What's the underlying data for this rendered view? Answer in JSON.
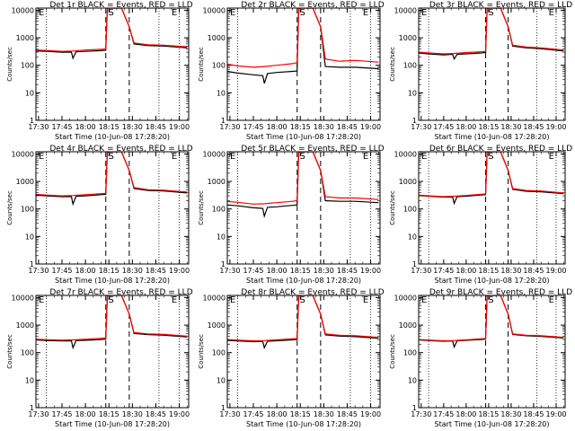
{
  "chart_data": [
    {
      "type": "line",
      "title": "Det 1r BLACK = Events, RED = LLD",
      "xlabel": "Start Time (10-Jun-08 17:28:20)",
      "ylabel": "Counts/sec",
      "x_ticklabels": [
        "17:30",
        "17:45",
        "18:00",
        "18:15",
        "18:30",
        "18:45",
        "19:00"
      ],
      "y_ticklabels": [
        "1",
        "10",
        "100",
        "1000",
        "10000"
      ],
      "ylim": [
        1,
        12000
      ],
      "yscale": "log",
      "annotations": [
        "E",
        "S",
        "E"
      ],
      "series": [
        {
          "name": "BLACK",
          "color": "#000000",
          "x": [
            "17:28",
            "17:35",
            "17:45",
            "17:51",
            "17:52",
            "17:54",
            "18:00",
            "18:10",
            "18:13",
            "18:14",
            "18:20",
            "18:23",
            "18:28",
            "18:31",
            "18:40",
            "18:50",
            "19:05"
          ],
          "y": [
            330,
            320,
            300,
            300,
            180,
            310,
            320,
            340,
            350,
            12000,
            12000,
            12000,
            2500,
            600,
            520,
            500,
            430
          ]
        },
        {
          "name": "RED",
          "color": "#ff0000",
          "x": [
            "17:28",
            "17:35",
            "17:45",
            "17:52",
            "18:00",
            "18:10",
            "18:13",
            "18:14",
            "18:20",
            "18:23",
            "18:28",
            "18:31",
            "18:40",
            "18:50",
            "19:05"
          ],
          "y": [
            360,
            345,
            320,
            330,
            360,
            380,
            390,
            12000,
            12000,
            12000,
            2500,
            650,
            560,
            540,
            470
          ]
        }
      ]
    },
    {
      "type": "line",
      "title": "Det 2r BLACK = Events, RED = LLD",
      "xlabel": "Start Time (10-Jun-08 17:28:20)",
      "ylabel": "Counts/sec",
      "x_ticklabels": [
        "17:30",
        "17:45",
        "18:00",
        "18:15",
        "18:30",
        "18:45",
        "19:00"
      ],
      "y_ticklabels": [
        "1",
        "10",
        "100",
        "1000",
        "10000"
      ],
      "ylim": [
        1,
        12000
      ],
      "yscale": "log",
      "annotations": [
        "E",
        "S",
        "E"
      ],
      "series": [
        {
          "name": "BLACK",
          "color": "#000000",
          "x": [
            "17:28",
            "17:35",
            "17:45",
            "17:51",
            "17:52",
            "17:54",
            "18:00",
            "18:10",
            "18:13",
            "18:14",
            "18:20",
            "18:23",
            "18:28",
            "18:31",
            "18:40",
            "18:50",
            "19:05"
          ],
          "y": [
            60,
            52,
            45,
            42,
            22,
            50,
            55,
            60,
            62,
            12000,
            12000,
            12000,
            2500,
            90,
            85,
            85,
            75
          ]
        },
        {
          "name": "RED",
          "color": "#ff0000",
          "x": [
            "17:28",
            "17:35",
            "17:45",
            "17:52",
            "18:00",
            "18:10",
            "18:13",
            "18:14",
            "18:20",
            "18:23",
            "18:28",
            "18:31",
            "18:40",
            "18:50",
            "19:05"
          ],
          "y": [
            110,
            95,
            85,
            90,
            100,
            115,
            125,
            12000,
            12000,
            12000,
            2500,
            170,
            140,
            150,
            130
          ]
        }
      ]
    },
    {
      "type": "line",
      "title": "Det 3r BLACK = Events, RED = LLD",
      "xlabel": "Start Time (10-Jun-08 17:28:20)",
      "ylabel": "Counts/sec",
      "x_ticklabels": [
        "17:30",
        "17:45",
        "18:00",
        "18:15",
        "18:30",
        "18:45",
        "19:00"
      ],
      "y_ticklabels": [
        "1",
        "10",
        "100",
        "1000",
        "10000"
      ],
      "ylim": [
        1,
        12000
      ],
      "yscale": "log",
      "annotations": [
        "E",
        "S",
        "E"
      ],
      "series": [
        {
          "name": "BLACK",
          "color": "#000000",
          "x": [
            "17:28",
            "17:35",
            "17:45",
            "17:51",
            "17:52",
            "17:54",
            "18:00",
            "18:10",
            "18:13",
            "18:14",
            "18:20",
            "18:23",
            "18:28",
            "18:31",
            "18:40",
            "18:50",
            "19:05"
          ],
          "y": [
            280,
            260,
            240,
            250,
            170,
            250,
            260,
            280,
            290,
            12000,
            12000,
            12000,
            2500,
            500,
            430,
            400,
            330
          ]
        },
        {
          "name": "RED",
          "color": "#ff0000",
          "x": [
            "17:28",
            "17:35",
            "17:45",
            "17:52",
            "18:00",
            "18:10",
            "18:13",
            "18:14",
            "18:20",
            "18:23",
            "18:28",
            "18:31",
            "18:40",
            "18:50",
            "19:05"
          ],
          "y": [
            300,
            280,
            260,
            270,
            290,
            310,
            320,
            12000,
            12000,
            12000,
            2500,
            540,
            460,
            430,
            360
          ]
        }
      ]
    },
    {
      "type": "line",
      "title": "Det 4r BLACK = Events, RED = LLD",
      "xlabel": "Start Time (10-Jun-08 17:28:20)",
      "ylabel": "Counts/sec",
      "x_ticklabels": [
        "17:30",
        "17:45",
        "18:00",
        "18:15",
        "18:30",
        "18:45",
        "19:00"
      ],
      "y_ticklabels": [
        "1",
        "10",
        "100",
        "1000",
        "10000"
      ],
      "ylim": [
        1,
        12000
      ],
      "yscale": "log",
      "annotations": [
        "E",
        "S",
        "E"
      ],
      "series": [
        {
          "name": "BLACK",
          "color": "#000000",
          "x": [
            "17:28",
            "17:35",
            "17:45",
            "17:51",
            "17:52",
            "17:54",
            "18:00",
            "18:10",
            "18:13",
            "18:14",
            "18:20",
            "18:23",
            "18:28",
            "18:31",
            "18:40",
            "18:50",
            "19:05"
          ],
          "y": [
            320,
            300,
            280,
            280,
            150,
            290,
            300,
            330,
            340,
            12000,
            12000,
            12000,
            2500,
            550,
            470,
            450,
            380
          ]
        },
        {
          "name": "RED",
          "color": "#ff0000",
          "x": [
            "17:28",
            "17:35",
            "17:45",
            "17:52",
            "18:00",
            "18:10",
            "18:13",
            "18:14",
            "18:20",
            "18:23",
            "18:28",
            "18:31",
            "18:40",
            "18:50",
            "19:05"
          ],
          "y": [
            340,
            320,
            300,
            310,
            330,
            360,
            370,
            12000,
            12000,
            12000,
            2500,
            600,
            500,
            480,
            410
          ]
        }
      ]
    },
    {
      "type": "line",
      "title": "Det 5r BLACK = Events, RED = LLD",
      "xlabel": "Start Time (10-Jun-08 17:28:20)",
      "ylabel": "Counts/sec",
      "x_ticklabels": [
        "17:30",
        "17:45",
        "18:00",
        "18:15",
        "18:30",
        "18:45",
        "19:00"
      ],
      "y_ticklabels": [
        "1",
        "10",
        "100",
        "1000",
        "10000"
      ],
      "ylim": [
        1,
        12000
      ],
      "yscale": "log",
      "annotations": [
        "E",
        "S",
        "E"
      ],
      "series": [
        {
          "name": "BLACK",
          "color": "#000000",
          "x": [
            "17:28",
            "17:35",
            "17:45",
            "17:51",
            "17:52",
            "17:54",
            "18:00",
            "18:10",
            "18:13",
            "18:14",
            "18:20",
            "18:23",
            "18:28",
            "18:31",
            "18:40",
            "18:50",
            "19:05"
          ],
          "y": [
            140,
            130,
            110,
            105,
            55,
            115,
            120,
            135,
            140,
            12000,
            12000,
            12000,
            2500,
            200,
            190,
            190,
            170
          ]
        },
        {
          "name": "RED",
          "color": "#ff0000",
          "x": [
            "17:28",
            "17:35",
            "17:45",
            "17:52",
            "18:00",
            "18:10",
            "18:13",
            "18:14",
            "18:20",
            "18:23",
            "18:28",
            "18:31",
            "18:40",
            "18:50",
            "19:05"
          ],
          "y": [
            190,
            175,
            150,
            155,
            170,
            190,
            200,
            12000,
            12000,
            12000,
            2500,
            280,
            250,
            250,
            220
          ]
        }
      ]
    },
    {
      "type": "line",
      "title": "Det 6r BLACK = Events, RED = LLD",
      "xlabel": "Start Time (10-Jun-08 17:28:20)",
      "ylabel": "Counts/sec",
      "x_ticklabels": [
        "17:30",
        "17:45",
        "18:00",
        "18:15",
        "18:30",
        "18:45",
        "19:00"
      ],
      "y_ticklabels": [
        "1",
        "10",
        "100",
        "1000",
        "10000"
      ],
      "ylim": [
        1,
        12000
      ],
      "yscale": "log",
      "annotations": [
        "E",
        "S",
        "E"
      ],
      "series": [
        {
          "name": "BLACK",
          "color": "#000000",
          "x": [
            "17:28",
            "17:35",
            "17:45",
            "17:51",
            "17:52",
            "17:54",
            "18:00",
            "18:10",
            "18:13",
            "18:14",
            "18:20",
            "18:23",
            "18:28",
            "18:31",
            "18:40",
            "18:50",
            "19:05"
          ],
          "y": [
            310,
            290,
            270,
            270,
            160,
            280,
            290,
            320,
            330,
            12000,
            12000,
            12000,
            2500,
            520,
            440,
            420,
            360
          ]
        },
        {
          "name": "RED",
          "color": "#ff0000",
          "x": [
            "17:28",
            "17:35",
            "17:45",
            "17:52",
            "18:00",
            "18:10",
            "18:13",
            "18:14",
            "18:20",
            "18:23",
            "18:28",
            "18:31",
            "18:40",
            "18:50",
            "19:05"
          ],
          "y": [
            320,
            300,
            280,
            290,
            310,
            340,
            350,
            12000,
            12000,
            12000,
            2500,
            550,
            470,
            450,
            380
          ]
        }
      ]
    },
    {
      "type": "line",
      "title": "Det 7r BLACK = Events, RED = LLD",
      "xlabel": "Start Time (10-Jun-08 17:28:20)",
      "ylabel": "Counts/sec",
      "x_ticklabels": [
        "17:30",
        "17:45",
        "18:00",
        "18:15",
        "18:30",
        "18:45",
        "19:00"
      ],
      "y_ticklabels": [
        "1",
        "10",
        "100",
        "1000",
        "10000"
      ],
      "ylim": [
        1,
        12000
      ],
      "yscale": "log",
      "annotations": [
        "E",
        "S",
        "E"
      ],
      "series": [
        {
          "name": "BLACK",
          "color": "#000000",
          "x": [
            "17:28",
            "17:35",
            "17:45",
            "17:51",
            "17:52",
            "17:54",
            "18:00",
            "18:10",
            "18:13",
            "18:14",
            "18:20",
            "18:23",
            "18:28",
            "18:31",
            "18:40",
            "18:50",
            "19:05"
          ],
          "y": [
            290,
            275,
            265,
            270,
            150,
            275,
            280,
            300,
            310,
            12000,
            12000,
            12000,
            2500,
            500,
            450,
            430,
            370
          ]
        },
        {
          "name": "RED",
          "color": "#ff0000",
          "x": [
            "17:28",
            "17:35",
            "17:45",
            "17:52",
            "18:00",
            "18:10",
            "18:13",
            "18:14",
            "18:20",
            "18:23",
            "18:28",
            "18:31",
            "18:40",
            "18:50",
            "19:05"
          ],
          "y": [
            310,
            295,
            285,
            290,
            305,
            330,
            340,
            12000,
            12000,
            12000,
            2500,
            540,
            480,
            460,
            400
          ]
        }
      ]
    },
    {
      "type": "line",
      "title": "Det 8r BLACK = Events, RED = LLD",
      "xlabel": "Start Time (10-Jun-08 17:28:20)",
      "ylabel": "Counts/sec",
      "x_ticklabels": [
        "17:30",
        "17:45",
        "18:00",
        "18:15",
        "18:30",
        "18:45",
        "19:00"
      ],
      "y_ticklabels": [
        "1",
        "10",
        "100",
        "1000",
        "10000"
      ],
      "ylim": [
        1,
        12000
      ],
      "yscale": "log",
      "annotations": [
        "E",
        "S",
        "E"
      ],
      "series": [
        {
          "name": "BLACK",
          "color": "#000000",
          "x": [
            "17:28",
            "17:35",
            "17:45",
            "17:51",
            "17:52",
            "17:54",
            "18:00",
            "18:10",
            "18:13",
            "18:14",
            "18:20",
            "18:23",
            "18:28",
            "18:31",
            "18:40",
            "18:50",
            "19:05"
          ],
          "y": [
            280,
            265,
            250,
            255,
            150,
            260,
            270,
            290,
            300,
            12000,
            12000,
            12000,
            2500,
            440,
            400,
            380,
            330
          ]
        },
        {
          "name": "RED",
          "color": "#ff0000",
          "x": [
            "17:28",
            "17:35",
            "17:45",
            "17:52",
            "18:00",
            "18:10",
            "18:13",
            "18:14",
            "18:20",
            "18:23",
            "18:28",
            "18:31",
            "18:40",
            "18:50",
            "19:05"
          ],
          "y": [
            300,
            285,
            270,
            275,
            290,
            315,
            325,
            12000,
            12000,
            12000,
            2500,
            480,
            430,
            410,
            360
          ]
        }
      ]
    },
    {
      "type": "line",
      "title": "Det 9r BLACK = Events, RED = LLD",
      "xlabel": "Start Time (10-Jun-08 17:28:20)",
      "ylabel": "Counts/sec",
      "x_ticklabels": [
        "17:30",
        "17:45",
        "18:00",
        "18:15",
        "18:30",
        "18:45",
        "19:00"
      ],
      "y_ticklabels": [
        "1",
        "10",
        "100",
        "1000",
        "10000"
      ],
      "ylim": [
        1,
        12000
      ],
      "yscale": "log",
      "annotations": [
        "E",
        "S",
        "E"
      ],
      "series": [
        {
          "name": "BLACK",
          "color": "#000000",
          "x": [
            "17:28",
            "17:35",
            "17:45",
            "17:51",
            "17:52",
            "17:54",
            "18:00",
            "18:10",
            "18:13",
            "18:14",
            "18:20",
            "18:23",
            "18:28",
            "18:31",
            "18:40",
            "18:50",
            "19:05"
          ],
          "y": [
            290,
            275,
            260,
            265,
            160,
            270,
            280,
            300,
            310,
            12000,
            12000,
            12000,
            2500,
            460,
            410,
            390,
            340
          ]
        },
        {
          "name": "RED",
          "color": "#ff0000",
          "x": [
            "17:28",
            "17:35",
            "17:45",
            "17:52",
            "18:00",
            "18:10",
            "18:13",
            "18:14",
            "18:20",
            "18:23",
            "18:28",
            "18:31",
            "18:40",
            "18:50",
            "19:05"
          ],
          "y": [
            300,
            285,
            270,
            275,
            290,
            315,
            325,
            12000,
            12000,
            12000,
            2500,
            480,
            430,
            410,
            360
          ]
        }
      ]
    }
  ],
  "markers": {
    "dotted_times": [
      "17:35",
      "18:47",
      "19:00"
    ],
    "dashed_times": [
      "18:13",
      "18:28"
    ]
  }
}
